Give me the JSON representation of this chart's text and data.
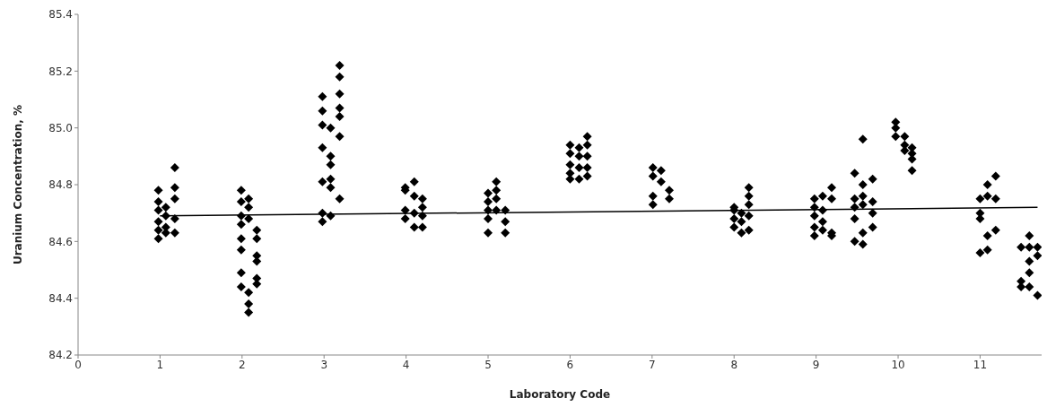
{
  "chart_data": {
    "type": "scatter",
    "xlabel": "Laboratory Code",
    "ylabel": "Uranium Concentration, %",
    "xlim": [
      0,
      11.75
    ],
    "xticks": [
      0,
      1,
      2,
      3,
      4,
      5,
      6,
      7,
      8,
      9,
      10,
      11
    ],
    "ylim": [
      84.2,
      85.4
    ],
    "yticks": [
      84.2,
      84.4,
      84.6,
      84.8,
      {
        "value": 85,
        "label": "85.0"
      },
      85.2,
      85.4
    ],
    "grid": false,
    "marker": "diamond",
    "series": [
      {
        "color": "#000000",
        "x": [
          0.98,
          0.98,
          0.98,
          0.98,
          0.98,
          0.98,
          1.07,
          1.07,
          1.07,
          1.07,
          1.18,
          1.18,
          1.18,
          1.18,
          1.18,
          1.99,
          1.99,
          1.99,
          1.99,
          1.99,
          1.99,
          1.99,
          1.99,
          2.08,
          2.08,
          2.08,
          2.08,
          2.08,
          2.08,
          2.18,
          2.18,
          2.18,
          2.18,
          2.18,
          2.18,
          2.98,
          2.98,
          2.98,
          2.98,
          2.98,
          2.98,
          2.98,
          3.08,
          3.08,
          3.08,
          3.08,
          3.08,
          3.08,
          3.19,
          3.19,
          3.19,
          3.19,
          3.19,
          3.19,
          3.19,
          3.99,
          3.99,
          3.99,
          3.99,
          4.1,
          4.1,
          4.1,
          4.1,
          4.2,
          4.2,
          4.2,
          4.2,
          5.0,
          5.0,
          5.0,
          5.0,
          5.0,
          5.1,
          5.1,
          5.1,
          5.1,
          5.21,
          5.21,
          5.21,
          6.0,
          6.0,
          6.0,
          6.0,
          6.0,
          6.11,
          6.11,
          6.11,
          6.11,
          6.21,
          6.21,
          6.21,
          6.21,
          6.21,
          7.01,
          7.01,
          7.01,
          7.01,
          7.11,
          7.11,
          7.21,
          7.21,
          8.0,
          8.0,
          8.0,
          8.0,
          8.09,
          8.09,
          8.09,
          8.18,
          8.18,
          8.18,
          8.18,
          8.18,
          8.98,
          8.98,
          8.98,
          8.98,
          8.98,
          9.08,
          9.08,
          9.08,
          9.08,
          9.19,
          9.19,
          9.19,
          9.19,
          9.47,
          9.47,
          9.47,
          9.47,
          9.47,
          9.57,
          9.57,
          9.57,
          9.57,
          9.57,
          9.57,
          9.69,
          9.69,
          9.69,
          9.69,
          9.97,
          9.97,
          9.97,
          10.08,
          10.08,
          10.08,
          10.17,
          10.17,
          10.17,
          10.17,
          11.0,
          11.0,
          11.0,
          11.0,
          11.09,
          11.09,
          11.09,
          11.09,
          11.19,
          11.19,
          11.19,
          11.5,
          11.5,
          11.5,
          11.6,
          11.6,
          11.6,
          11.6,
          11.6,
          11.7,
          11.7,
          11.7
        ],
        "values": [
          84.78,
          84.74,
          84.71,
          84.67,
          84.64,
          84.61,
          84.72,
          84.69,
          84.65,
          84.63,
          84.86,
          84.79,
          84.75,
          84.68,
          84.63,
          84.78,
          84.74,
          84.69,
          84.66,
          84.61,
          84.57,
          84.49,
          84.44,
          84.75,
          84.72,
          84.68,
          84.42,
          84.38,
          84.35,
          84.64,
          84.61,
          84.55,
          84.53,
          84.47,
          84.45,
          85.11,
          85.06,
          85.01,
          84.93,
          84.81,
          84.7,
          84.67,
          85.0,
          84.9,
          84.87,
          84.82,
          84.79,
          84.69,
          85.22,
          85.18,
          85.12,
          85.07,
          85.04,
          84.97,
          84.75,
          84.79,
          84.78,
          84.71,
          84.68,
          84.81,
          84.76,
          84.7,
          84.65,
          84.75,
          84.72,
          84.69,
          84.65,
          84.77,
          84.74,
          84.71,
          84.68,
          84.63,
          84.81,
          84.78,
          84.75,
          84.71,
          84.71,
          84.67,
          84.63,
          84.94,
          84.91,
          84.87,
          84.84,
          84.82,
          84.93,
          84.9,
          84.86,
          84.82,
          84.97,
          84.94,
          84.9,
          84.86,
          84.83,
          84.86,
          84.83,
          84.76,
          84.73,
          84.85,
          84.81,
          84.78,
          84.75,
          84.72,
          84.71,
          84.68,
          84.65,
          84.7,
          84.67,
          84.63,
          84.79,
          84.76,
          84.73,
          84.69,
          84.64,
          84.75,
          84.72,
          84.69,
          84.65,
          84.62,
          84.76,
          84.71,
          84.67,
          84.64,
          84.79,
          84.75,
          84.63,
          84.62,
          84.84,
          84.75,
          84.72,
          84.68,
          84.6,
          84.96,
          84.8,
          84.76,
          84.73,
          84.63,
          84.59,
          84.82,
          84.74,
          84.7,
          84.65,
          85.02,
          85.0,
          84.97,
          84.97,
          84.94,
          84.92,
          84.93,
          84.91,
          84.89,
          84.85,
          84.75,
          84.7,
          84.68,
          84.56,
          84.8,
          84.76,
          84.62,
          84.57,
          84.83,
          84.75,
          84.64,
          84.58,
          84.46,
          84.44,
          84.62,
          84.58,
          84.53,
          84.49,
          84.44,
          84.58,
          84.55,
          84.41
        ]
      },
      {
        "type": "line",
        "color": "#000000",
        "marker": "none",
        "x": [
          1.0,
          11.7
        ],
        "values": [
          84.69,
          84.72
        ]
      }
    ]
  }
}
